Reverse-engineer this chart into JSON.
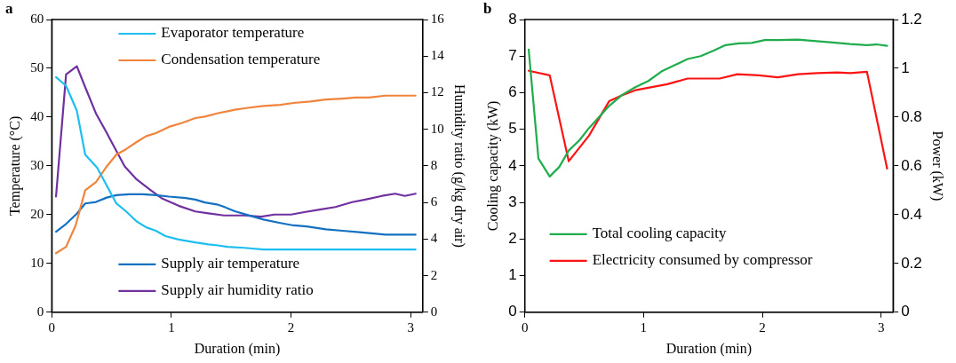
{
  "chart_data": [
    {
      "type": "line",
      "title": "a",
      "xlabel": "Duration (min)",
      "ylabel": "Temperature (°C)",
      "y2label": "Humidity ratio (g/kg dry air)",
      "xlim": [
        0,
        3.1
      ],
      "xticks": [
        0,
        1,
        2,
        3
      ],
      "ylim": [
        0,
        60
      ],
      "yticks": [
        0,
        10,
        20,
        30,
        40,
        50,
        60
      ],
      "y2lim": [
        0,
        16
      ],
      "y2ticks": [
        0,
        2,
        4,
        6,
        8,
        10,
        12,
        14,
        16
      ],
      "grid": false,
      "legend": "top",
      "marker": "none",
      "line_style": "solid",
      "series": [
        {
          "name": "Evaporator temperature",
          "color": "#1ebff0",
          "x": [
            0.036,
            0.12,
            0.21,
            0.28,
            0.38,
            0.54,
            0.62,
            0.71,
            0.79,
            0.87,
            0.95,
            1.06,
            1.2,
            1.31,
            1.39,
            1.47,
            1.61,
            1.77,
            2.2,
            2.6,
            3.04
          ],
          "values": [
            48.2,
            46.4,
            41.3,
            32.3,
            29.6,
            22.3,
            20.7,
            18.6,
            17.4,
            16.7,
            15.6,
            14.9,
            14.3,
            13.9,
            13.7,
            13.4,
            13.2,
            12.85,
            12.85,
            12.85,
            12.85
          ]
        },
        {
          "name": "Condensation temperature",
          "color": "#f0843c",
          "x": [
            0.036,
            0.12,
            0.2,
            0.28,
            0.37,
            0.46,
            0.54,
            0.62,
            0.71,
            0.79,
            0.87,
            0.98,
            1.09,
            1.2,
            1.28,
            1.39,
            1.53,
            1.64,
            1.77,
            1.91,
            2.02,
            2.16,
            2.29,
            2.43,
            2.54,
            2.65,
            2.79,
            3.04
          ],
          "values": [
            12.1,
            13.4,
            17.8,
            25,
            26.7,
            29.9,
            32.3,
            33.4,
            34.9,
            36.1,
            36.7,
            38,
            38.8,
            39.8,
            40.1,
            40.8,
            41.5,
            41.9,
            42.3,
            42.5,
            42.9,
            43.2,
            43.6,
            43.8,
            44,
            44,
            44.4,
            44.4
          ]
        },
        {
          "name": "Supply air temperature",
          "color": "#1470c0",
          "x": [
            0.036,
            0.12,
            0.21,
            0.28,
            0.37,
            0.46,
            0.54,
            0.65,
            0.76,
            0.87,
            0.98,
            1.12,
            1.2,
            1.28,
            1.38,
            1.44,
            1.53,
            1.64,
            1.77,
            1.91,
            2.02,
            2.13,
            2.29,
            2.43,
            2.57,
            2.79,
            3.04
          ],
          "values": [
            16.5,
            18.1,
            20.2,
            22.3,
            22.6,
            23.5,
            24,
            24.2,
            24.2,
            24,
            23.7,
            23.4,
            23.1,
            22.5,
            22.1,
            21.6,
            20.7,
            19.9,
            19,
            18.3,
            17.8,
            17.6,
            17,
            16.7,
            16.4,
            15.9,
            15.9
          ]
        },
        {
          "name": "Supply air humidity ratio",
          "color": "#7030a0",
          "axis": "y2",
          "x": [
            0.036,
            0.12,
            0.21,
            0.28,
            0.37,
            0.45,
            0.53,
            0.61,
            0.71,
            0.82,
            0.92,
            1.06,
            1.2,
            1.31,
            1.44,
            1.61,
            1.75,
            1.86,
            2.0,
            2.1,
            2.24,
            2.37,
            2.51,
            2.62,
            2.76,
            2.87,
            2.95,
            3.04
          ],
          "values": [
            6.33,
            13.0,
            13.45,
            12.3,
            10.86,
            9.92,
            8.94,
            7.97,
            7.26,
            6.7,
            6.23,
            5.82,
            5.51,
            5.41,
            5.29,
            5.29,
            5.22,
            5.34,
            5.34,
            5.46,
            5.61,
            5.75,
            6.02,
            6.16,
            6.36,
            6.48,
            6.36,
            6.48
          ]
        }
      ]
    },
    {
      "type": "line",
      "title": "b",
      "xlabel": "Duration (min)",
      "ylabel": "Cooling capacity (kW)",
      "y2label": "Power (kW)",
      "xlim": [
        0,
        3.1
      ],
      "xticks": [
        0,
        1,
        2,
        3
      ],
      "ylim": [
        0,
        8
      ],
      "yticks": [
        0,
        1,
        2,
        3,
        4,
        5,
        6,
        7,
        8
      ],
      "y2lim": [
        0,
        1.2
      ],
      "y2ticks": [
        0,
        0.2,
        0.4,
        0.6,
        0.8,
        1,
        1.2
      ],
      "grid": false,
      "legend": "bottom left",
      "marker": "none",
      "line_style": "solid",
      "series": [
        {
          "name": "Total cooling capacity",
          "color": "#1fac4c",
          "x": [
            0.033,
            0.115,
            0.21,
            0.29,
            0.37,
            0.46,
            0.54,
            0.71,
            0.82,
            0.93,
            1.04,
            1.15,
            1.26,
            1.37,
            1.48,
            1.59,
            1.69,
            1.8,
            1.91,
            2.02,
            2.13,
            2.3,
            2.41,
            2.57,
            2.74,
            2.88,
            2.96,
            3.05
          ],
          "values": [
            7.18,
            4.2,
            3.71,
            3.97,
            4.42,
            4.7,
            5.03,
            5.64,
            5.94,
            6.15,
            6.32,
            6.58,
            6.75,
            6.92,
            7.0,
            7.15,
            7.3,
            7.35,
            7.36,
            7.44,
            7.44,
            7.45,
            7.42,
            7.38,
            7.33,
            7.3,
            7.32,
            7.28
          ]
        },
        {
          "name": "Electricity consumed by compressor",
          "color": "#fa1414",
          "axis": "y2",
          "x": [
            0.033,
            0.21,
            0.37,
            0.54,
            0.71,
            0.82,
            0.93,
            1.04,
            1.2,
            1.37,
            1.48,
            1.64,
            1.79,
            1.97,
            2.13,
            2.3,
            2.46,
            2.63,
            2.74,
            2.88,
            3.05
          ],
          "values": [
            0.99,
            0.971,
            0.619,
            0.724,
            0.865,
            0.89,
            0.91,
            0.92,
            0.935,
            0.958,
            0.958,
            0.958,
            0.976,
            0.971,
            0.963,
            0.976,
            0.98,
            0.983,
            0.98,
            0.986,
            0.589
          ]
        }
      ]
    }
  ]
}
